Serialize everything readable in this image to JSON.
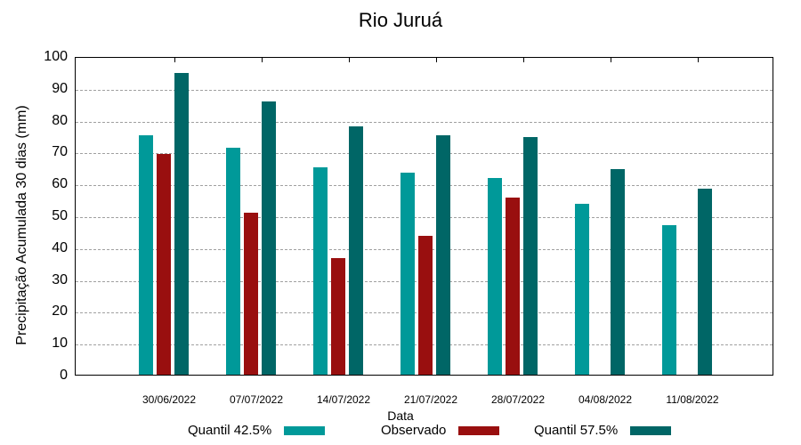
{
  "chart_data": {
    "type": "bar",
    "title": "Rio Juruá",
    "xlabel": "Data",
    "ylabel": "Precipitação Acumulada 30 dias (mm)",
    "ylim": [
      0,
      100
    ],
    "yticks": [
      0,
      10,
      20,
      30,
      40,
      50,
      60,
      70,
      80,
      90,
      100
    ],
    "grid": true,
    "legend_position": "bottom",
    "categories": [
      "30/06/2022",
      "07/07/2022",
      "14/07/2022",
      "21/07/2022",
      "28/07/2022",
      "04/08/2022",
      "11/08/2022"
    ],
    "series": [
      {
        "name": "Quantil 42.5%",
        "color": "#009999",
        "values": [
          75.1,
          71.2,
          65.1,
          63.4,
          61.7,
          53.6,
          46.9
        ]
      },
      {
        "name": "Observado",
        "color": "#990f0f",
        "values": [
          69.3,
          50.8,
          36.6,
          43.6,
          55.6,
          null,
          null
        ]
      },
      {
        "name": "Quantil 57.5%",
        "color": "#006666",
        "values": [
          94.7,
          85.8,
          77.9,
          75.1,
          74.6,
          64.5,
          58.4
        ]
      }
    ]
  }
}
